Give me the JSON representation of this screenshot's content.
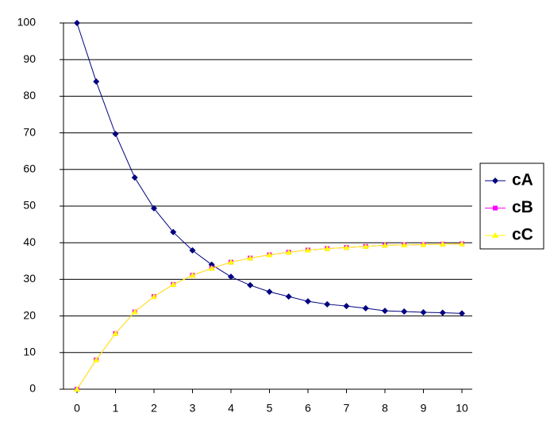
{
  "chart_data": {
    "type": "line",
    "x": [
      0,
      0.5,
      1,
      1.5,
      2,
      2.5,
      3,
      3.5,
      4,
      4.5,
      5,
      5.5,
      6,
      6.5,
      7,
      7.5,
      8,
      8.5,
      9,
      9.5,
      10
    ],
    "series": [
      {
        "name": "cA",
        "color": "#000080",
        "marker": "diamond",
        "values": [
          100,
          84,
          69.7,
          57.8,
          49.4,
          42.9,
          37.9,
          34,
          30.7,
          28.4,
          26.6,
          25.3,
          24,
          23.2,
          22.7,
          22.1,
          21.4,
          21.2,
          21,
          20.9,
          20.7
        ]
      },
      {
        "name": "cB",
        "color": "#ff00ff",
        "marker": "square",
        "values": [
          0,
          8,
          15.2,
          21.1,
          25.3,
          28.6,
          31.1,
          33,
          34.7,
          35.8,
          36.7,
          37.4,
          38,
          38.4,
          38.7,
          39,
          39.3,
          39.4,
          39.5,
          39.6,
          39.7
        ]
      },
      {
        "name": "cC",
        "color": "#ffff00",
        "marker": "triangle",
        "values": [
          0,
          8,
          15.2,
          21.1,
          25.3,
          28.6,
          31.1,
          33,
          34.7,
          35.8,
          36.7,
          37.4,
          38,
          38.4,
          38.7,
          39,
          39.3,
          39.4,
          39.5,
          39.6,
          39.7
        ]
      }
    ],
    "xlim": [
      0,
      10
    ],
    "xticks": [
      0,
      1,
      2,
      3,
      4,
      5,
      6,
      7,
      8,
      9,
      10
    ],
    "ylim": [
      0,
      100
    ],
    "yticks": [
      0,
      10,
      20,
      30,
      40,
      50,
      60,
      70,
      80,
      90,
      100
    ],
    "grid": true,
    "legend": "right"
  }
}
